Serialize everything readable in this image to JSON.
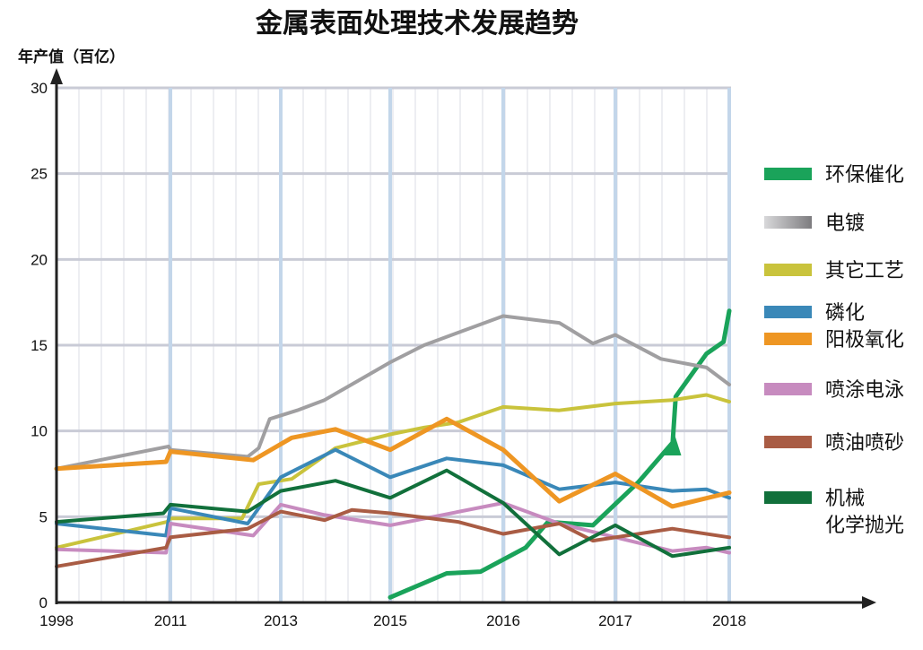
{
  "chart_data": {
    "type": "line",
    "title": "金属表面处理技术发展趋势",
    "ylabel": "年产值（百亿）",
    "xlabel": "",
    "ylim": [
      0,
      30
    ],
    "yticks": [
      "0",
      "5",
      "10",
      "15",
      "20",
      "25",
      "30"
    ],
    "x_categories": [
      "1998",
      "2011",
      "2013",
      "2015",
      "2016",
      "2017",
      "2018"
    ],
    "grid": true,
    "legend_position": "right",
    "series": [
      {
        "name": "环保催化",
        "color": "#1aa35a",
        "points": [
          [
            2015,
            0.3
          ],
          [
            2015.5,
            1.7
          ],
          [
            2015.8,
            1.8
          ],
          [
            2016.2,
            3.2
          ],
          [
            2016.4,
            4.7
          ],
          [
            2016.8,
            4.5
          ],
          [
            2017.2,
            7.0
          ],
          [
            2017.5,
            9.3
          ],
          [
            2017.5,
            9.0
          ],
          [
            2017.53,
            12.0
          ],
          [
            2017.8,
            14.5
          ],
          [
            2017.95,
            15.2
          ],
          [
            2018,
            17.0
          ]
        ]
      },
      {
        "name": "电镀",
        "color": "#a09fa1",
        "points": [
          [
            1998,
            7.8
          ],
          [
            2010.8,
            9.1
          ],
          [
            2011,
            8.9
          ],
          [
            2012.4,
            8.5
          ],
          [
            2012.6,
            9.0
          ],
          [
            2012.8,
            10.7
          ],
          [
            2013.3,
            11.2
          ],
          [
            2013.8,
            11.8
          ],
          [
            2015,
            14.0
          ],
          [
            2015.3,
            15.0
          ],
          [
            2016,
            16.7
          ],
          [
            2016.5,
            16.3
          ],
          [
            2016.8,
            15.1
          ],
          [
            2017,
            15.6
          ],
          [
            2017.4,
            14.2
          ],
          [
            2017.8,
            13.7
          ],
          [
            2018,
            12.7
          ]
        ]
      },
      {
        "name": "其它工艺",
        "color": "#c9c33c",
        "points": [
          [
            1998,
            3.2
          ],
          [
            2010.6,
            4.7
          ],
          [
            2011,
            4.9
          ],
          [
            2012.3,
            4.9
          ],
          [
            2012.6,
            6.9
          ],
          [
            2013.2,
            7.2
          ],
          [
            2014,
            9.0
          ],
          [
            2015,
            9.8
          ],
          [
            2015.3,
            10.2
          ],
          [
            2015.6,
            10.5
          ],
          [
            2016,
            11.4
          ],
          [
            2016.5,
            11.2
          ],
          [
            2017,
            11.6
          ],
          [
            2017.5,
            11.8
          ],
          [
            2017.8,
            12.1
          ],
          [
            2018,
            11.7
          ]
        ]
      },
      {
        "name": "磷化",
        "color": "#3a88b8",
        "points": [
          [
            1998,
            4.6
          ],
          [
            2010.5,
            3.9
          ],
          [
            2011,
            5.5
          ],
          [
            2012.4,
            4.6
          ],
          [
            2013,
            7.3
          ],
          [
            2014,
            8.9
          ],
          [
            2015,
            7.3
          ],
          [
            2015.5,
            8.4
          ],
          [
            2016,
            8.0
          ],
          [
            2016.5,
            6.6
          ],
          [
            2017,
            7.0
          ],
          [
            2017.5,
            6.5
          ],
          [
            2017.8,
            6.6
          ],
          [
            2018,
            6.1
          ]
        ]
      },
      {
        "name": "阳极氧化",
        "color": "#ee9623",
        "points": [
          [
            1998,
            7.8
          ],
          [
            2010.5,
            8.2
          ],
          [
            2011,
            8.8
          ],
          [
            2012.5,
            8.3
          ],
          [
            2013.2,
            9.6
          ],
          [
            2014,
            10.1
          ],
          [
            2015,
            8.9
          ],
          [
            2015.5,
            10.7
          ],
          [
            2016,
            8.9
          ],
          [
            2016.5,
            5.9
          ],
          [
            2017,
            7.5
          ],
          [
            2017.5,
            5.6
          ],
          [
            2018,
            6.4
          ]
        ]
      },
      {
        "name": "喷涂电泳",
        "color": "#c78bbf",
        "points": [
          [
            1998,
            3.1
          ],
          [
            2010.5,
            2.9
          ],
          [
            2011,
            4.6
          ],
          [
            2012.5,
            3.9
          ],
          [
            2013,
            5.7
          ],
          [
            2013.8,
            5.1
          ],
          [
            2015,
            4.5
          ],
          [
            2016,
            5.8
          ],
          [
            2016.5,
            4.6
          ],
          [
            2017,
            3.8
          ],
          [
            2017.5,
            3.0
          ],
          [
            2017.8,
            3.2
          ],
          [
            2018,
            2.9
          ]
        ]
      },
      {
        "name": "喷油喷砂",
        "color": "#a95c44",
        "points": [
          [
            1998,
            2.1
          ],
          [
            2010.5,
            3.2
          ],
          [
            2011,
            3.8
          ],
          [
            2012.4,
            4.3
          ],
          [
            2013,
            5.3
          ],
          [
            2013.8,
            4.8
          ],
          [
            2014.3,
            5.4
          ],
          [
            2015,
            5.2
          ],
          [
            2015.6,
            4.7
          ],
          [
            2016,
            4.0
          ],
          [
            2016.5,
            4.6
          ],
          [
            2016.8,
            3.6
          ],
          [
            2017.5,
            4.3
          ],
          [
            2018,
            3.8
          ]
        ]
      },
      {
        "name": "机械化学抛光",
        "name_lines": [
          "机械",
          "化学抛光"
        ],
        "color": "#11703b",
        "points": [
          [
            1998,
            4.7
          ],
          [
            2010.2,
            5.2
          ],
          [
            2011,
            5.7
          ],
          [
            2012.4,
            5.3
          ],
          [
            2013,
            6.5
          ],
          [
            2014,
            7.1
          ],
          [
            2015,
            6.1
          ],
          [
            2015.5,
            7.7
          ],
          [
            2016,
            5.8
          ],
          [
            2016.5,
            2.8
          ],
          [
            2017,
            4.5
          ],
          [
            2017.5,
            2.7
          ],
          [
            2018,
            3.2
          ]
        ]
      }
    ]
  }
}
